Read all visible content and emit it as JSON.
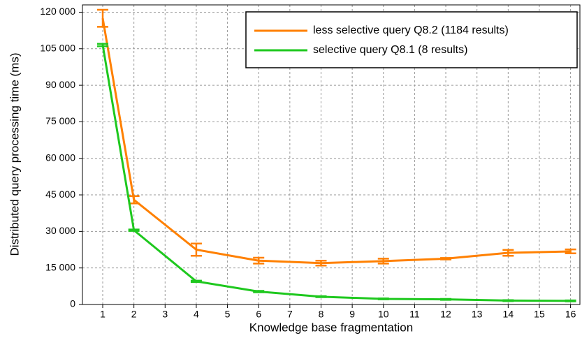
{
  "chart_data": {
    "type": "line",
    "xlabel": "Knowledge base fragmentation",
    "ylabel": "Distributed query processing time (ms)",
    "x": [
      1,
      2,
      4,
      6,
      8,
      10,
      12,
      14,
      16
    ],
    "series": [
      {
        "name": "less selective query Q8.2 (1184 results)",
        "color": "#ff8000",
        "values": [
          117500,
          43000,
          22500,
          18000,
          17000,
          17800,
          18800,
          21200,
          21800
        ],
        "errors": [
          3500,
          1500,
          2500,
          1200,
          1000,
          1000,
          300,
          1200,
          800
        ]
      },
      {
        "name": "selective query Q8.1 (8 results)",
        "color": "#1ec81e",
        "values": [
          106500,
          30500,
          9500,
          5300,
          3200,
          2300,
          2100,
          1600,
          1500
        ],
        "errors": [
          500,
          300,
          300,
          300,
          200,
          200,
          200,
          200,
          200
        ]
      }
    ],
    "xlim": [
      0.35,
      16.3
    ],
    "xticks": [
      1,
      2,
      3,
      4,
      5,
      6,
      7,
      8,
      9,
      10,
      11,
      12,
      13,
      14,
      15,
      16
    ],
    "ylim": [
      0,
      123000
    ],
    "yticks": [
      0,
      {
        "value": 15000,
        "label": "15 000"
      },
      {
        "value": 30000,
        "label": "30 000"
      },
      {
        "value": 45000,
        "label": "45 000"
      },
      {
        "value": 60000,
        "label": "60 000"
      },
      {
        "value": 75000,
        "label": "75 000"
      },
      {
        "value": 90000,
        "label": "90 000"
      },
      {
        "value": 105000,
        "label": "105 000"
      },
      {
        "value": 120000,
        "label": "120 000"
      }
    ],
    "grid": true,
    "legend": "upper right"
  }
}
